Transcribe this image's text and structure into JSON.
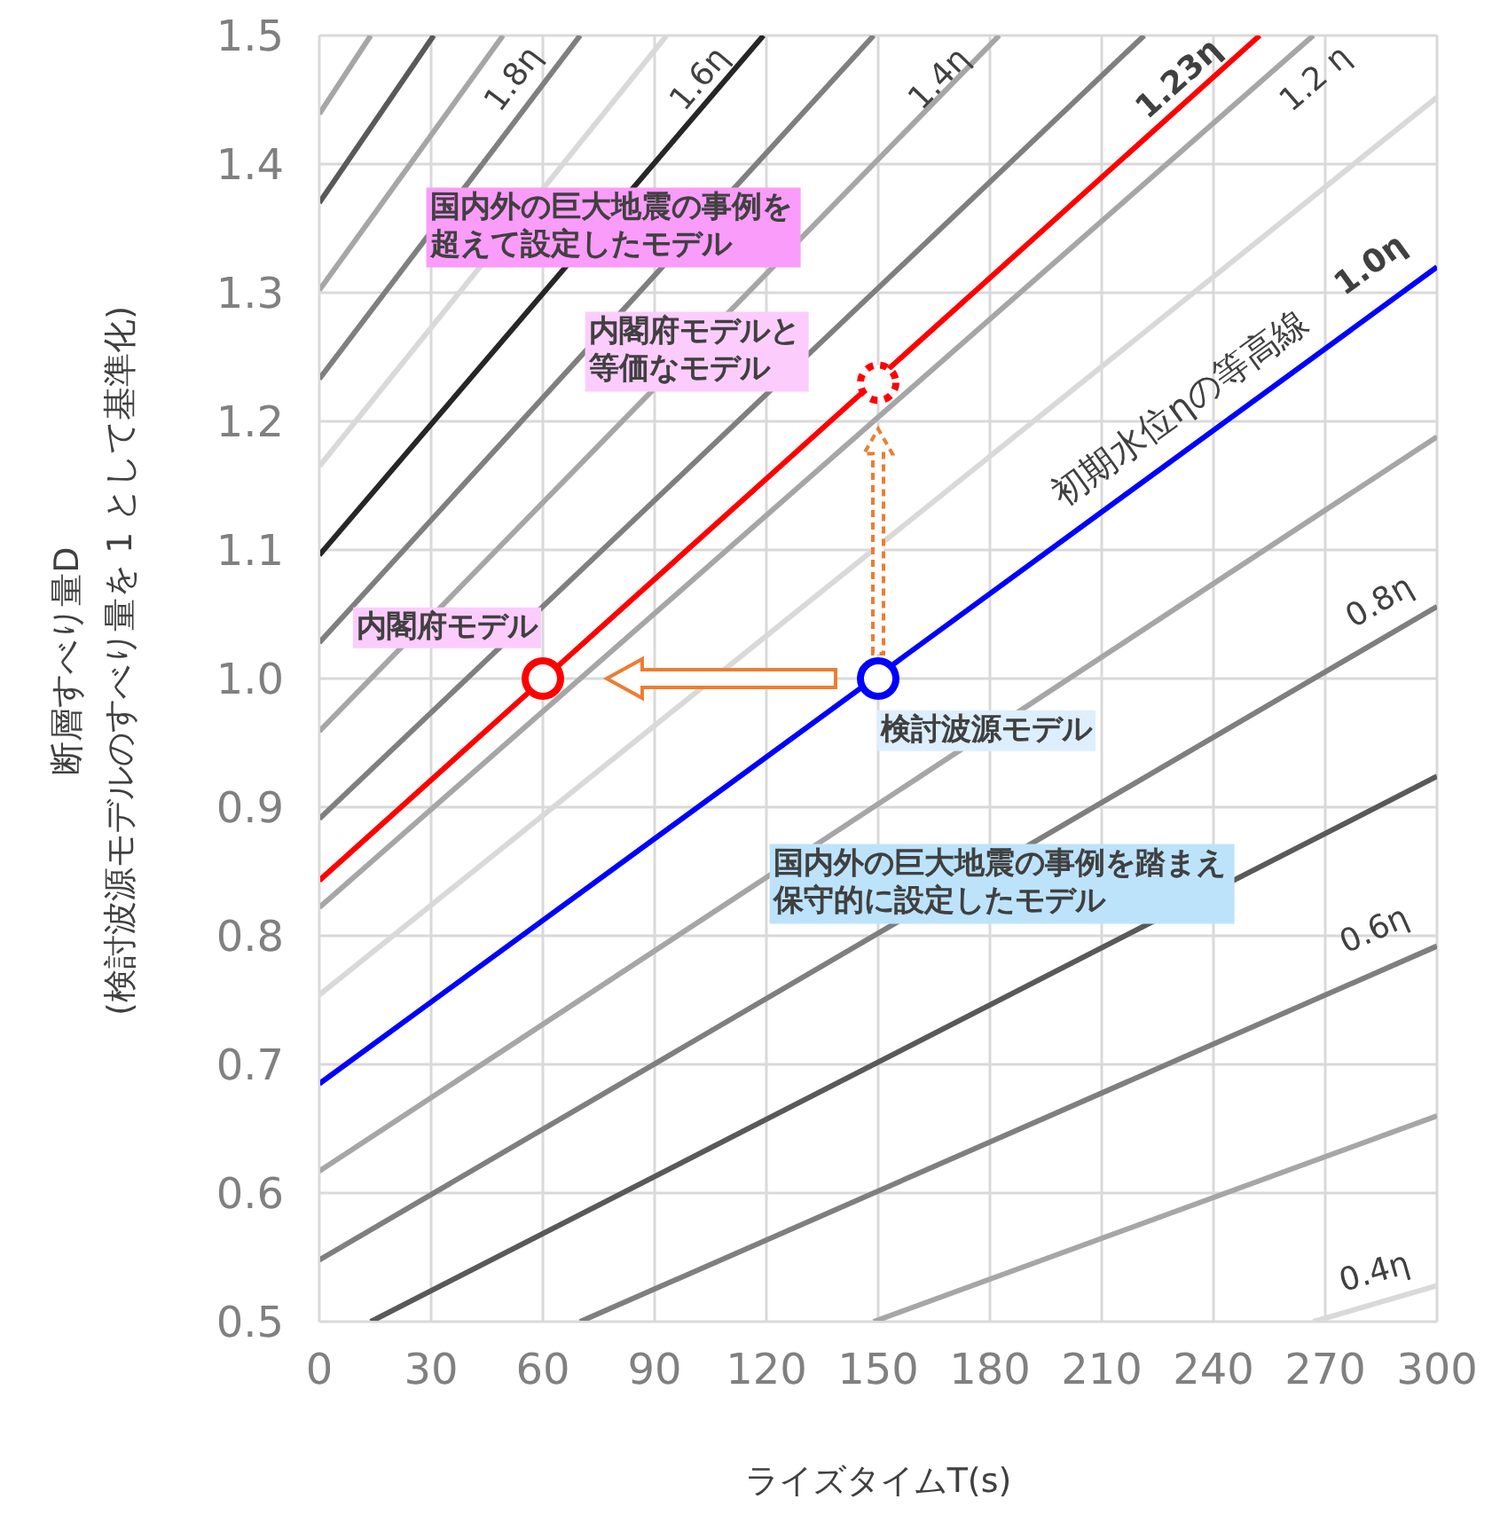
{
  "chart_data": {
    "type": "line",
    "xlabel": "ライズタイムT(s)",
    "ylabel": "断層すべり量D\n(検討波源モデルのすべり量を 1 として基準化)",
    "xlim": [
      0,
      300
    ],
    "xticks": [
      0,
      30,
      60,
      90,
      120,
      150,
      180,
      210,
      240,
      270,
      300
    ],
    "ylim": [
      0.5,
      1.5
    ],
    "yticks": [
      0.5,
      0.6,
      0.7,
      0.8,
      0.9,
      {
        "value": 1,
        "label": "1.0"
      },
      1.1,
      1.2,
      1.3,
      1.4,
      1.5
    ],
    "grid": true,
    "series": [
      {
        "color": "#d9d9d9",
        "x": [
          266.8,
          300
        ],
        "values": [
          0.5,
          0.528
        ]
      },
      {
        "color": "#a6a6a6",
        "x": [
          148.8,
          300
        ],
        "values": [
          0.5,
          0.66
        ]
      },
      {
        "color": "#7f7f7f",
        "x": [
          70,
          300
        ],
        "values": [
          0.5,
          0.792
        ]
      },
      {
        "color": "#595959",
        "x": [
          13.8,
          300
        ],
        "values": [
          0.5,
          0.924
        ]
      },
      {
        "color": "#7f7f7f",
        "x": [
          0,
          300
        ],
        "values": [
          0.548,
          1.056
        ]
      },
      {
        "color": "#a6a6a6",
        "x": [
          0,
          300
        ],
        "values": [
          0.617,
          1.188
        ]
      },
      {
        "color": "#0000ff",
        "x": [
          0,
          300
        ],
        "values": [
          0.685,
          1.32
        ]
      },
      {
        "color": "#d9d9d9",
        "x": [
          0,
          300
        ],
        "values": [
          0.754,
          1.452
        ]
      },
      {
        "color": "#a6a6a6",
        "x": [
          0,
          266.8
        ],
        "values": [
          0.822,
          1.5
        ]
      },
      {
        "color": "#ff0000",
        "x": [
          0,
          252.4
        ],
        "values": [
          0.843,
          1.5
        ]
      },
      {
        "color": "#7f7f7f",
        "x": [
          0,
          221.4
        ],
        "values": [
          0.891,
          1.5
        ]
      },
      {
        "color": "#a6a6a6",
        "x": [
          0,
          182.5
        ],
        "values": [
          0.959,
          1.5
        ]
      },
      {
        "color": "#7f7f7f",
        "x": [
          0,
          148.8
        ],
        "values": [
          1.028,
          1.5
        ]
      },
      {
        "color": "#262626",
        "x": [
          0,
          119.2
        ],
        "values": [
          1.096,
          1.5
        ]
      },
      {
        "color": "#d9d9d9",
        "x": [
          0,
          93.2
        ],
        "values": [
          1.165,
          1.5
        ]
      },
      {
        "color": "#7f7f7f",
        "x": [
          0,
          70
        ],
        "values": [
          1.233,
          1.5
        ]
      },
      {
        "color": "#a6a6a6",
        "x": [
          0,
          49.3
        ],
        "values": [
          1.302,
          1.5
        ]
      },
      {
        "color": "#595959",
        "x": [
          0,
          30.7
        ],
        "values": [
          1.37,
          1.5
        ]
      },
      {
        "color": "#a6a6a6",
        "x": [
          0,
          13.8
        ],
        "values": [
          1.439,
          1.5
        ]
      },
      {
        "type": "scatter",
        "marker": "circle",
        "color": "#ff0000",
        "x": [
          60
        ],
        "values": [
          1.0
        ]
      },
      {
        "type": "scatter",
        "marker": "circle",
        "color": "#0000ff",
        "x": [
          150
        ],
        "values": [
          1.0
        ]
      },
      {
        "type": "scatter",
        "marker": "circle",
        "line_style": "dotted",
        "color": "#ff0000",
        "x": [
          150
        ],
        "values": [
          1.23
        ]
      }
    ],
    "annotations": [
      "国内外の巨大地震の事例を超えて設定したモデル",
      "内閣府モデルと等価なモデル",
      "内閣府モデル",
      "検討波源モデル",
      "国内外の巨大地震の事例を踏まえ保守的に設定したモデル",
      "初期水位ηの等高線",
      "1.0η",
      "1.8η",
      "1.6η",
      "1.4η",
      "1.23η",
      "1.2 η",
      "0.8η",
      "0.6η",
      "0.4η"
    ]
  }
}
